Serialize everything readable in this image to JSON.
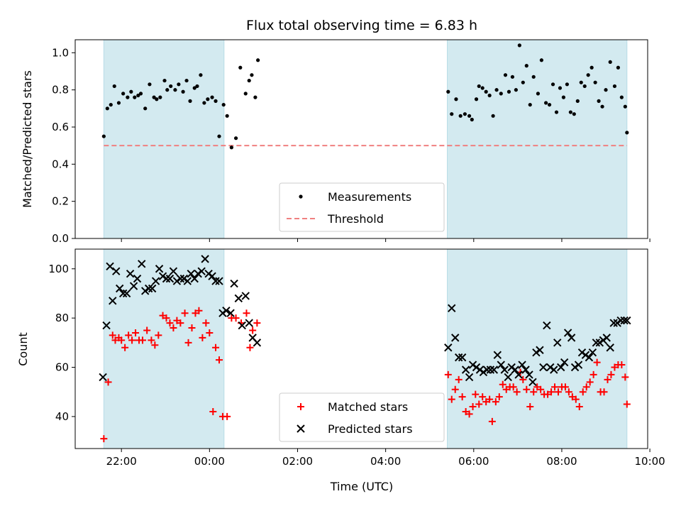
{
  "chart_data": {
    "type": "scatter",
    "title": "Flux total observing time = 6.83 h",
    "xlabel": "Time (UTC)",
    "x_unit": "hours since 00:00 UTC",
    "xlim": [
      -3.05,
      9.95
    ],
    "x_ticks": [
      {
        "value": -2,
        "label": "22:00"
      },
      {
        "value": 0,
        "label": "00:00"
      },
      {
        "value": 2,
        "label": "02:00"
      },
      {
        "value": 4,
        "label": "04:00"
      },
      {
        "value": 6,
        "label": "06:00"
      },
      {
        "value": 8,
        "label": "08:00"
      },
      {
        "value": 10,
        "label": "10:00"
      }
    ],
    "shaded_spans": [
      [
        -2.4,
        0.33
      ],
      [
        5.4,
        9.48
      ]
    ],
    "shade_color": "#d3eaf0",
    "panels": [
      {
        "ylabel": "Matched/Predicted stars",
        "ylim": [
          0,
          1.07
        ],
        "y_ticks": [
          {
            "value": 0.0,
            "label": "0.0"
          },
          {
            "value": 0.2,
            "label": "0.2"
          },
          {
            "value": 0.4,
            "label": "0.4"
          },
          {
            "value": 0.6,
            "label": "0.6"
          },
          {
            "value": 0.8,
            "label": "0.8"
          },
          {
            "value": 1.0,
            "label": "1.0"
          }
        ],
        "legend": {
          "position": "lower-center",
          "entries": [
            "Measurements",
            "Threshold"
          ]
        },
        "threshold": {
          "name": "Threshold",
          "value": 0.5,
          "x_range": [
            -2.4,
            9.48
          ],
          "color": "#f08080"
        },
        "series": [
          {
            "name": "Measurements",
            "marker": "dot",
            "color": "#000000",
            "x": [
              -2.4,
              -2.32,
              -2.24,
              -2.16,
              -2.06,
              -1.96,
              -1.86,
              -1.78,
              -1.7,
              -1.62,
              -1.56,
              -1.46,
              -1.36,
              -1.26,
              -1.2,
              -1.12,
              -1.02,
              -0.96,
              -0.88,
              -0.78,
              -0.7,
              -0.6,
              -0.52,
              -0.44,
              -0.34,
              -0.28,
              -0.2,
              -0.12,
              -0.04,
              0.06,
              0.14,
              0.22,
              0.32,
              0.4,
              0.5,
              0.6,
              0.7,
              0.82,
              0.9,
              0.96,
              1.04,
              1.1,
              5.42,
              5.5,
              5.6,
              5.7,
              5.8,
              5.9,
              5.96,
              6.06,
              6.12,
              6.2,
              6.28,
              6.36,
              6.44,
              6.52,
              6.62,
              6.72,
              6.8,
              6.88,
              6.96,
              7.04,
              7.12,
              7.2,
              7.28,
              7.36,
              7.46,
              7.54,
              7.64,
              7.72,
              7.8,
              7.88,
              7.96,
              8.04,
              8.12,
              8.2,
              8.28,
              8.36,
              8.44,
              8.52,
              8.6,
              8.68,
              8.76,
              8.84,
              8.92,
              9.0,
              9.1,
              9.2,
              9.28,
              9.36,
              9.44,
              9.48
            ],
            "y": [
              0.55,
              0.7,
              0.72,
              0.82,
              0.73,
              0.78,
              0.76,
              0.79,
              0.76,
              0.77,
              0.78,
              0.7,
              0.83,
              0.76,
              0.75,
              0.76,
              0.85,
              0.8,
              0.82,
              0.8,
              0.83,
              0.79,
              0.85,
              0.74,
              0.81,
              0.82,
              0.88,
              0.73,
              0.75,
              0.76,
              0.74,
              0.55,
              0.72,
              0.66,
              0.49,
              0.54,
              0.92,
              0.78,
              0.85,
              0.88,
              0.76,
              0.96,
              0.79,
              0.67,
              0.75,
              0.66,
              0.67,
              0.66,
              0.64,
              0.75,
              0.82,
              0.81,
              0.79,
              0.77,
              0.66,
              0.8,
              0.78,
              0.88,
              0.79,
              0.87,
              0.8,
              1.04,
              0.84,
              0.93,
              0.72,
              0.87,
              0.78,
              0.96,
              0.73,
              0.72,
              0.83,
              0.68,
              0.81,
              0.76,
              0.83,
              0.68,
              0.67,
              0.74,
              0.84,
              0.82,
              0.88,
              0.92,
              0.84,
              0.74,
              0.71,
              0.8,
              0.95,
              0.82,
              0.92,
              0.76,
              0.71,
              0.57
            ]
          }
        ]
      },
      {
        "ylabel": "Count",
        "ylim": [
          27,
          108
        ],
        "y_ticks": [
          {
            "value": 40,
            "label": "40"
          },
          {
            "value": 60,
            "label": "60"
          },
          {
            "value": 80,
            "label": "80"
          },
          {
            "value": 100,
            "label": "100"
          }
        ],
        "legend": {
          "position": "lower-center",
          "entries": [
            "Matched stars",
            "Predicted stars"
          ]
        },
        "series": [
          {
            "name": "Matched stars",
            "marker": "plus",
            "color": "#ff0000",
            "x": [
              -2.4,
              -2.3,
              -2.2,
              -2.14,
              -2.06,
              -2.0,
              -1.92,
              -1.84,
              -1.76,
              -1.68,
              -1.6,
              -1.52,
              -1.42,
              -1.32,
              -1.24,
              -1.16,
              -1.06,
              -0.98,
              -0.9,
              -0.82,
              -0.74,
              -0.66,
              -0.56,
              -0.48,
              -0.4,
              -0.32,
              -0.24,
              -0.16,
              -0.08,
              0.0,
              0.08,
              0.14,
              0.22,
              0.3,
              0.4,
              0.5,
              0.6,
              0.72,
              0.84,
              0.92,
              0.98,
              1.08,
              5.42,
              5.5,
              5.58,
              5.66,
              5.74,
              5.82,
              5.9,
              5.98,
              6.04,
              6.12,
              6.2,
              6.28,
              6.36,
              6.42,
              6.5,
              6.58,
              6.66,
              6.74,
              6.82,
              6.9,
              6.98,
              7.06,
              7.12,
              7.2,
              7.28,
              7.36,
              7.44,
              7.52,
              7.6,
              7.68,
              7.76,
              7.84,
              7.92,
              8.0,
              8.08,
              8.16,
              8.24,
              8.32,
              8.4,
              8.48,
              8.56,
              8.64,
              8.72,
              8.8,
              8.88,
              8.96,
              9.04,
              9.12,
              9.2,
              9.28,
              9.36,
              9.44,
              9.48
            ],
            "y": [
              31,
              54,
              73,
              71,
              72,
              71,
              68,
              73,
              71,
              74,
              71,
              71,
              75,
              71,
              69,
              73,
              81,
              80,
              78,
              76,
              79,
              78,
              82,
              70,
              76,
              82,
              83,
              72,
              78,
              74,
              42,
              68,
              63,
              40,
              40,
              80,
              80,
              78,
              82,
              68,
              75,
              78,
              57,
              47,
              51,
              55,
              48,
              42,
              41,
              44,
              49,
              45,
              48,
              46,
              47,
              38,
              46,
              48,
              53,
              51,
              52,
              52,
              50,
              58,
              55,
              51,
              44,
              50,
              52,
              51,
              49,
              49,
              50,
              52,
              50,
              52,
              52,
              50,
              48,
              47,
              44,
              50,
              52,
              54,
              57,
              62,
              50,
              50,
              55,
              57,
              60,
              61,
              61,
              56,
              45
            ]
          },
          {
            "name": "Predicted stars",
            "marker": "x",
            "color": "#000000",
            "x": [
              -2.42,
              -2.34,
              -2.26,
              -2.2,
              -2.12,
              -2.04,
              -1.96,
              -1.88,
              -1.8,
              -1.72,
              -1.64,
              -1.54,
              -1.46,
              -1.38,
              -1.3,
              -1.22,
              -1.14,
              -1.06,
              -0.98,
              -0.9,
              -0.82,
              -0.74,
              -0.66,
              -0.58,
              -0.5,
              -0.42,
              -0.34,
              -0.26,
              -0.18,
              -0.1,
              -0.02,
              0.06,
              0.14,
              0.22,
              0.3,
              0.38,
              0.48,
              0.56,
              0.66,
              0.74,
              0.82,
              0.9,
              0.98,
              1.08,
              5.42,
              5.5,
              5.58,
              5.66,
              5.74,
              5.82,
              5.9,
              5.98,
              6.06,
              6.14,
              6.22,
              6.3,
              6.38,
              6.46,
              6.54,
              6.62,
              6.7,
              6.78,
              6.86,
              6.94,
              7.02,
              7.1,
              7.18,
              7.26,
              7.34,
              7.42,
              7.5,
              7.58,
              7.66,
              7.74,
              7.82,
              7.9,
              7.98,
              8.06,
              8.14,
              8.22,
              8.3,
              8.38,
              8.46,
              8.54,
              8.62,
              8.7,
              8.78,
              8.86,
              8.94,
              9.02,
              9.1,
              9.18,
              9.26,
              9.34,
              9.42,
              9.48
            ],
            "y": [
              56,
              77,
              101,
              87,
              99,
              92,
              90,
              90,
              98,
              93,
              96,
              102,
              91,
              92,
              92,
              95,
              100,
              97,
              96,
              96,
              99,
              95,
              96,
              96,
              95,
              98,
              96,
              98,
              99,
              104,
              98,
              97,
              95,
              95,
              82,
              83,
              82,
              94,
              88,
              77,
              89,
              78,
              72,
              70,
              68,
              84,
              72,
              64,
              64,
              59,
              56,
              61,
              60,
              59,
              58,
              59,
              59,
              59,
              65,
              61,
              59,
              56,
              60,
              59,
              57,
              61,
              59,
              57,
              54,
              66,
              67,
              60,
              77,
              60,
              59,
              70,
              60,
              62,
              74,
              72,
              60,
              61,
              66,
              65,
              64,
              66,
              70,
              70,
              71,
              72,
              68,
              78,
              78,
              79,
              79,
              79
            ]
          }
        ]
      }
    ]
  }
}
